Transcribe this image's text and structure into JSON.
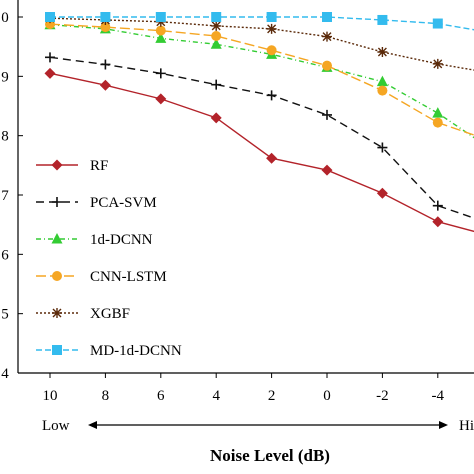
{
  "chart_data": {
    "type": "line",
    "x": [
      10,
      8,
      6,
      4,
      2,
      0,
      -2,
      -4,
      -6
    ],
    "x_tick_labels": [
      "10",
      "8",
      "6",
      "4",
      "2",
      "0",
      "-2",
      "-4"
    ],
    "y_tick_labels": [
      "0",
      "9",
      "8",
      "7",
      "6",
      "5",
      "4"
    ],
    "ylim": [
      0.4,
      1.0
    ],
    "xlabel": "Noise Level (dB)",
    "x_range_labels": {
      "low": "Low",
      "high": "Hi"
    },
    "grid": false,
    "legend_position": "left",
    "series": [
      {
        "name": "RF",
        "color": "#b3232a",
        "dash": "solid",
        "marker": "diamond",
        "values": [
          0.905,
          0.885,
          0.862,
          0.83,
          0.762,
          0.742,
          0.703,
          0.655,
          0.63
        ]
      },
      {
        "name": "PCA-SVM",
        "color": "#111111",
        "dash": "8,5",
        "marker": "plus",
        "values": [
          0.932,
          0.92,
          0.905,
          0.886,
          0.868,
          0.835,
          0.78,
          0.682,
          0.65
        ]
      },
      {
        "name": "1d-DCNN",
        "color": "#33cc33",
        "dash": "5,3,1,3",
        "marker": "triangle",
        "values": [
          0.987,
          0.98,
          0.964,
          0.954,
          0.937,
          0.915,
          0.891,
          0.838,
          0.775
        ]
      },
      {
        "name": "CNN-LSTM",
        "color": "#f5a623",
        "dash": "10,4",
        "marker": "circle",
        "values": [
          0.988,
          0.983,
          0.977,
          0.968,
          0.944,
          0.918,
          0.876,
          0.822,
          0.79
        ]
      },
      {
        "name": "XGBF",
        "color": "#5b2a0a",
        "dash": "2,2",
        "marker": "star",
        "values": [
          0.998,
          0.995,
          0.992,
          0.985,
          0.98,
          0.967,
          0.941,
          0.921,
          0.905
        ]
      },
      {
        "name": "MD-1d-DCNN",
        "color": "#33bbee",
        "dash": "6,3",
        "marker": "square",
        "values": [
          1.0,
          1.0,
          1.0,
          1.0,
          1.0,
          1.0,
          0.995,
          0.989,
          0.973
        ]
      }
    ]
  }
}
